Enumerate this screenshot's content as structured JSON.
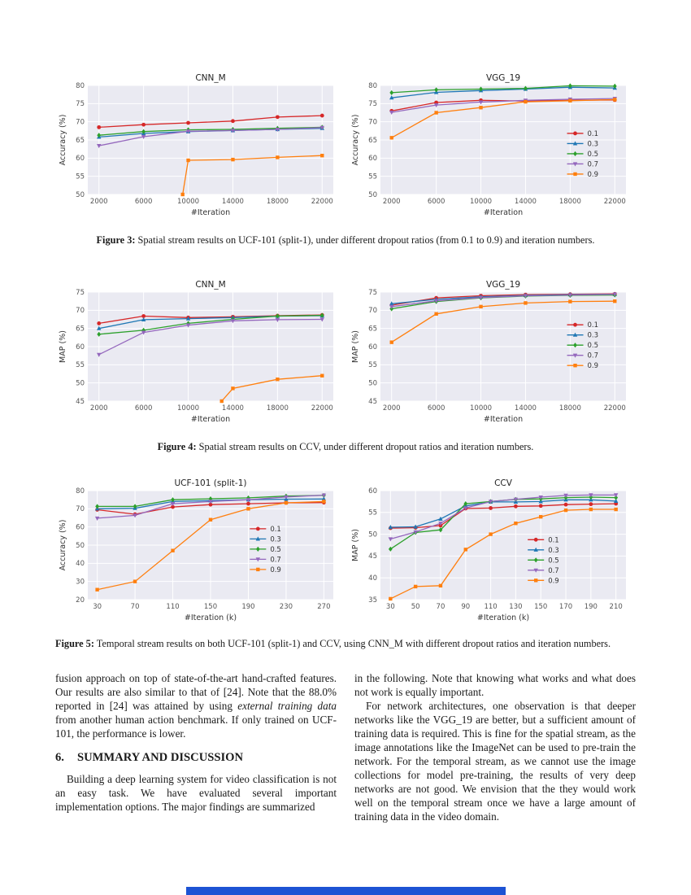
{
  "page": {
    "bottom_bar_color": "#1d53d4"
  },
  "figures": [
    {
      "label": "Figure 3:",
      "caption": "Spatial stream results on UCF-101 (split-1), under different dropout ratios (from 0.1 to 0.9) and iteration numbers."
    },
    {
      "label": "Figure 4:",
      "caption": "Spatial stream results on CCV, under different dropout ratios and iteration numbers."
    },
    {
      "label": "Figure 5:",
      "caption": "Temporal stream results on both UCF-101 (split-1) and CCV, using CNN_M with different dropout ratios and iteration numbers."
    }
  ],
  "chart_data": [
    {
      "type": "line",
      "title": "CNN_M",
      "xlabel": "#Iteration",
      "ylabel": "Accuracy (%)",
      "xlim": [
        1000,
        23000
      ],
      "ylim": [
        50,
        80
      ],
      "xticks": [
        2000,
        6000,
        10000,
        14000,
        18000,
        22000
      ],
      "yticks": [
        50,
        55,
        60,
        65,
        70,
        75,
        80
      ],
      "x": [
        2000,
        6000,
        10000,
        14000,
        18000,
        22000
      ],
      "series": [
        {
          "name": "0.1",
          "color": "#d62728",
          "marker": "circle",
          "values": [
            68.5,
            69.2,
            69.7,
            70.2,
            71.3,
            71.7
          ]
        },
        {
          "name": "0.3",
          "color": "#1f77b4",
          "marker": "triangle-up",
          "values": [
            65.8,
            66.8,
            67.3,
            67.6,
            67.9,
            68.2
          ]
        },
        {
          "name": "0.5",
          "color": "#2ca02c",
          "marker": "diamond",
          "values": [
            66.3,
            67.3,
            67.8,
            67.9,
            68.2,
            68.5
          ]
        },
        {
          "name": "0.7",
          "color": "#9467bd",
          "marker": "triangle-down",
          "values": [
            63.4,
            65.9,
            67.4,
            67.6,
            67.9,
            68.4
          ]
        },
        {
          "name": "0.9",
          "color": "#ff7f0e",
          "marker": "square",
          "x": [
            9500,
            10000,
            14000,
            18000,
            22000
          ],
          "values": [
            50,
            59.4,
            59.6,
            60.2,
            60.7
          ]
        }
      ],
      "legend": null
    },
    {
      "type": "line",
      "title": "VGG_19",
      "xlabel": "#Iteration",
      "ylabel": "Accuracy (%)",
      "xlim": [
        1000,
        23000
      ],
      "ylim": [
        50,
        80
      ],
      "xticks": [
        2000,
        6000,
        10000,
        14000,
        18000,
        22000
      ],
      "yticks": [
        50,
        55,
        60,
        65,
        70,
        75,
        80
      ],
      "x": [
        2000,
        6000,
        10000,
        14000,
        18000,
        22000
      ],
      "series": [
        {
          "name": "0.1",
          "color": "#d62728",
          "marker": "circle",
          "values": [
            73.0,
            75.3,
            75.9,
            75.7,
            75.9,
            76.0
          ]
        },
        {
          "name": "0.3",
          "color": "#1f77b4",
          "marker": "triangle-up",
          "values": [
            76.6,
            78.1,
            78.6,
            79.0,
            79.5,
            79.3
          ]
        },
        {
          "name": "0.5",
          "color": "#2ca02c",
          "marker": "diamond",
          "values": [
            78.0,
            78.8,
            79.0,
            79.2,
            79.9,
            79.8
          ]
        },
        {
          "name": "0.7",
          "color": "#9467bd",
          "marker": "triangle-down",
          "values": [
            72.6,
            74.6,
            75.4,
            75.9,
            76.2,
            76.4
          ]
        },
        {
          "name": "0.9",
          "color": "#ff7f0e",
          "marker": "square",
          "values": [
            65.6,
            72.5,
            73.9,
            75.5,
            75.8,
            76.1
          ]
        }
      ],
      "legend": {
        "x": 0.76,
        "y": 0.44
      }
    },
    {
      "type": "line",
      "title": "CNN_M",
      "xlabel": "#Iteration",
      "ylabel": "MAP (%)",
      "xlim": [
        1000,
        23000
      ],
      "ylim": [
        45,
        75
      ],
      "xticks": [
        2000,
        6000,
        10000,
        14000,
        18000,
        22000
      ],
      "yticks": [
        45,
        50,
        55,
        60,
        65,
        70,
        75
      ],
      "x": [
        2000,
        6000,
        10000,
        14000,
        18000,
        22000
      ],
      "series": [
        {
          "name": "0.1",
          "color": "#d62728",
          "marker": "circle",
          "values": [
            66.4,
            68.4,
            68.0,
            68.2,
            68.5,
            68.7
          ]
        },
        {
          "name": "0.3",
          "color": "#1f77b4",
          "marker": "triangle-up",
          "values": [
            65.0,
            67.4,
            67.7,
            68.0,
            68.4,
            68.5
          ]
        },
        {
          "name": "0.5",
          "color": "#2ca02c",
          "marker": "diamond",
          "values": [
            63.4,
            64.5,
            66.4,
            67.5,
            68.4,
            68.6
          ]
        },
        {
          "name": "0.7",
          "color": "#9467bd",
          "marker": "triangle-down",
          "values": [
            57.8,
            63.9,
            65.9,
            67.1,
            67.4,
            67.5
          ]
        },
        {
          "name": "0.9",
          "color": "#ff7f0e",
          "marker": "square",
          "x": [
            13000,
            14000,
            18000,
            22000
          ],
          "values": [
            45,
            48.5,
            51.0,
            52.0
          ]
        }
      ],
      "legend": null
    },
    {
      "type": "line",
      "title": "VGG_19",
      "xlabel": "#Iteration",
      "ylabel": "MAP (%)",
      "xlim": [
        1000,
        23000
      ],
      "ylim": [
        45,
        75
      ],
      "xticks": [
        2000,
        6000,
        10000,
        14000,
        18000,
        22000
      ],
      "yticks": [
        45,
        50,
        55,
        60,
        65,
        70,
        75
      ],
      "x": [
        2000,
        6000,
        10000,
        14000,
        18000,
        22000
      ],
      "series": [
        {
          "name": "0.1",
          "color": "#d62728",
          "marker": "circle",
          "values": [
            71.4,
            73.4,
            74.0,
            74.3,
            74.4,
            74.5
          ]
        },
        {
          "name": "0.3",
          "color": "#1f77b4",
          "marker": "triangle-up",
          "values": [
            71.8,
            73.0,
            73.7,
            74.1,
            74.3,
            74.4
          ]
        },
        {
          "name": "0.5",
          "color": "#2ca02c",
          "marker": "diamond",
          "values": [
            70.4,
            72.4,
            73.4,
            73.9,
            74.1,
            74.2
          ]
        },
        {
          "name": "0.7",
          "color": "#9467bd",
          "marker": "triangle-down",
          "values": [
            71.0,
            72.6,
            73.5,
            74.0,
            74.2,
            74.4
          ]
        },
        {
          "name": "0.9",
          "color": "#ff7f0e",
          "marker": "square",
          "values": [
            61.2,
            69.0,
            71.0,
            72.0,
            72.4,
            72.5
          ]
        }
      ],
      "legend": {
        "x": 0.76,
        "y": 0.3
      }
    },
    {
      "type": "line",
      "title": "UCF-101 (split-1)",
      "xlabel": "#Iteration (k)",
      "ylabel": "Accuracy (%)",
      "xlim": [
        20,
        280
      ],
      "ylim": [
        20,
        80
      ],
      "xticks": [
        30,
        70,
        110,
        150,
        190,
        230,
        270
      ],
      "yticks": [
        20,
        30,
        40,
        50,
        60,
        70,
        80
      ],
      "x": [
        30,
        70,
        110,
        150,
        190,
        230,
        270
      ],
      "series": [
        {
          "name": "0.1",
          "color": "#d62728",
          "marker": "circle",
          "values": [
            69.5,
            67.0,
            71.0,
            72.3,
            72.8,
            73.3,
            73.4
          ]
        },
        {
          "name": "0.3",
          "color": "#1f77b4",
          "marker": "triangle-up",
          "values": [
            70.0,
            70.3,
            74.0,
            74.5,
            75.0,
            75.3,
            75.4
          ]
        },
        {
          "name": "0.5",
          "color": "#2ca02c",
          "marker": "diamond",
          "values": [
            71.3,
            71.3,
            75.0,
            75.5,
            76.0,
            77.0,
            77.4
          ]
        },
        {
          "name": "0.7",
          "color": "#9467bd",
          "marker": "triangle-down",
          "values": [
            64.8,
            66.4,
            72.8,
            74.0,
            75.0,
            76.5,
            77.5
          ]
        },
        {
          "name": "0.9",
          "color": "#ff7f0e",
          "marker": "square",
          "values": [
            25.5,
            30.0,
            47.0,
            64.0,
            70.0,
            73.3,
            74.0
          ]
        }
      ],
      "legend": {
        "x": 0.66,
        "y": 0.35
      }
    },
    {
      "type": "line",
      "title": "CCV",
      "xlabel": "#Iteration (k)",
      "ylabel": "MAP (%)",
      "xlim": [
        22,
        218
      ],
      "ylim": [
        35,
        60
      ],
      "xticks": [
        30,
        50,
        70,
        90,
        110,
        130,
        150,
        170,
        190,
        210
      ],
      "yticks": [
        35,
        40,
        45,
        50,
        55,
        60
      ],
      "x": [
        30,
        50,
        70,
        90,
        110,
        130,
        150,
        170,
        190,
        210
      ],
      "series": [
        {
          "name": "0.1",
          "color": "#d62728",
          "marker": "circle",
          "values": [
            51.4,
            51.5,
            52.0,
            55.9,
            56.0,
            56.4,
            56.5,
            56.8,
            56.9,
            57.0
          ]
        },
        {
          "name": "0.3",
          "color": "#1f77b4",
          "marker": "triangle-up",
          "values": [
            51.6,
            51.7,
            53.5,
            56.5,
            57.4,
            57.4,
            57.5,
            57.9,
            57.9,
            57.6
          ]
        },
        {
          "name": "0.5",
          "color": "#2ca02c",
          "marker": "diamond",
          "values": [
            46.6,
            50.4,
            51.0,
            57.0,
            57.5,
            58.0,
            58.1,
            58.4,
            58.5,
            58.4
          ]
        },
        {
          "name": "0.7",
          "color": "#9467bd",
          "marker": "triangle-down",
          "values": [
            48.9,
            50.5,
            52.5,
            56.0,
            57.5,
            58.0,
            58.5,
            58.9,
            59.0,
            59.0
          ]
        },
        {
          "name": "0.9",
          "color": "#ff7f0e",
          "marker": "square",
          "values": [
            35.2,
            38.0,
            38.2,
            46.5,
            50.0,
            52.5,
            54.0,
            55.5,
            55.7,
            55.7
          ]
        }
      ],
      "legend": {
        "x": 0.6,
        "y": 0.45
      }
    }
  ],
  "body": {
    "left": {
      "para1_pre": "fusion approach on top of state-of-the-art hand-crafted features. Our results are also similar to that of [24]. Note that the 88.0% reported in [24] was attained by using ",
      "para1_italic": "external training data",
      "para1_post": " from another human action benchmark. If only trained on UCF-101, the performance is lower.",
      "heading_number": "6.",
      "heading_text": "SUMMARY AND DISCUSSION",
      "para2": "Building a deep learning system for video classification is not an easy task. We have evaluated several important implementation options. The major findings are summarized"
    },
    "right": {
      "para1": "in the following. Note that knowing what works and what does not work is equally important.",
      "para2": "For network architectures, one observation is that deeper networks like the VGG_19 are better, but a sufficient amount of training data is required. This is fine for the spatial stream, as the image annotations like the ImageNet can be used to pre-train the network. For the temporal stream, as we cannot use the image collections for model pre-training, the results of very deep networks are not good. We envision that the they would work well on the temporal stream once we have a large amount of training data in the video domain."
    }
  }
}
